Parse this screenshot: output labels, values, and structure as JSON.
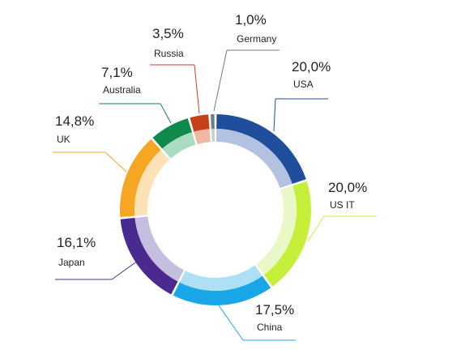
{
  "chart_data": {
    "type": "donut",
    "categories": [
      "USA",
      "US IT",
      "China",
      "Japan",
      "UK",
      "Australia",
      "Russia",
      "Germany"
    ],
    "values": [
      20.0,
      20.0,
      17.5,
      16.1,
      14.8,
      7.1,
      3.5,
      1.0
    ],
    "value_labels": [
      "20,0%",
      "20,0%",
      "17,5%",
      "16,1%",
      "14,8%",
      "7,1%",
      "3,5%",
      "1,0%"
    ],
    "colors": [
      "#1f4e9c",
      "#c6ef3a",
      "#1aa7e8",
      "#4b2a8f",
      "#f5a623",
      "#0f8a4a",
      "#c8401a",
      "#6b7f86"
    ],
    "inner_colors": [
      "#b3c2e0",
      "#eaf8c8",
      "#aee0f5",
      "#c6bedf",
      "#fde2b6",
      "#a9dcc1",
      "#f0b7a5",
      "#c8d0d3"
    ]
  }
}
